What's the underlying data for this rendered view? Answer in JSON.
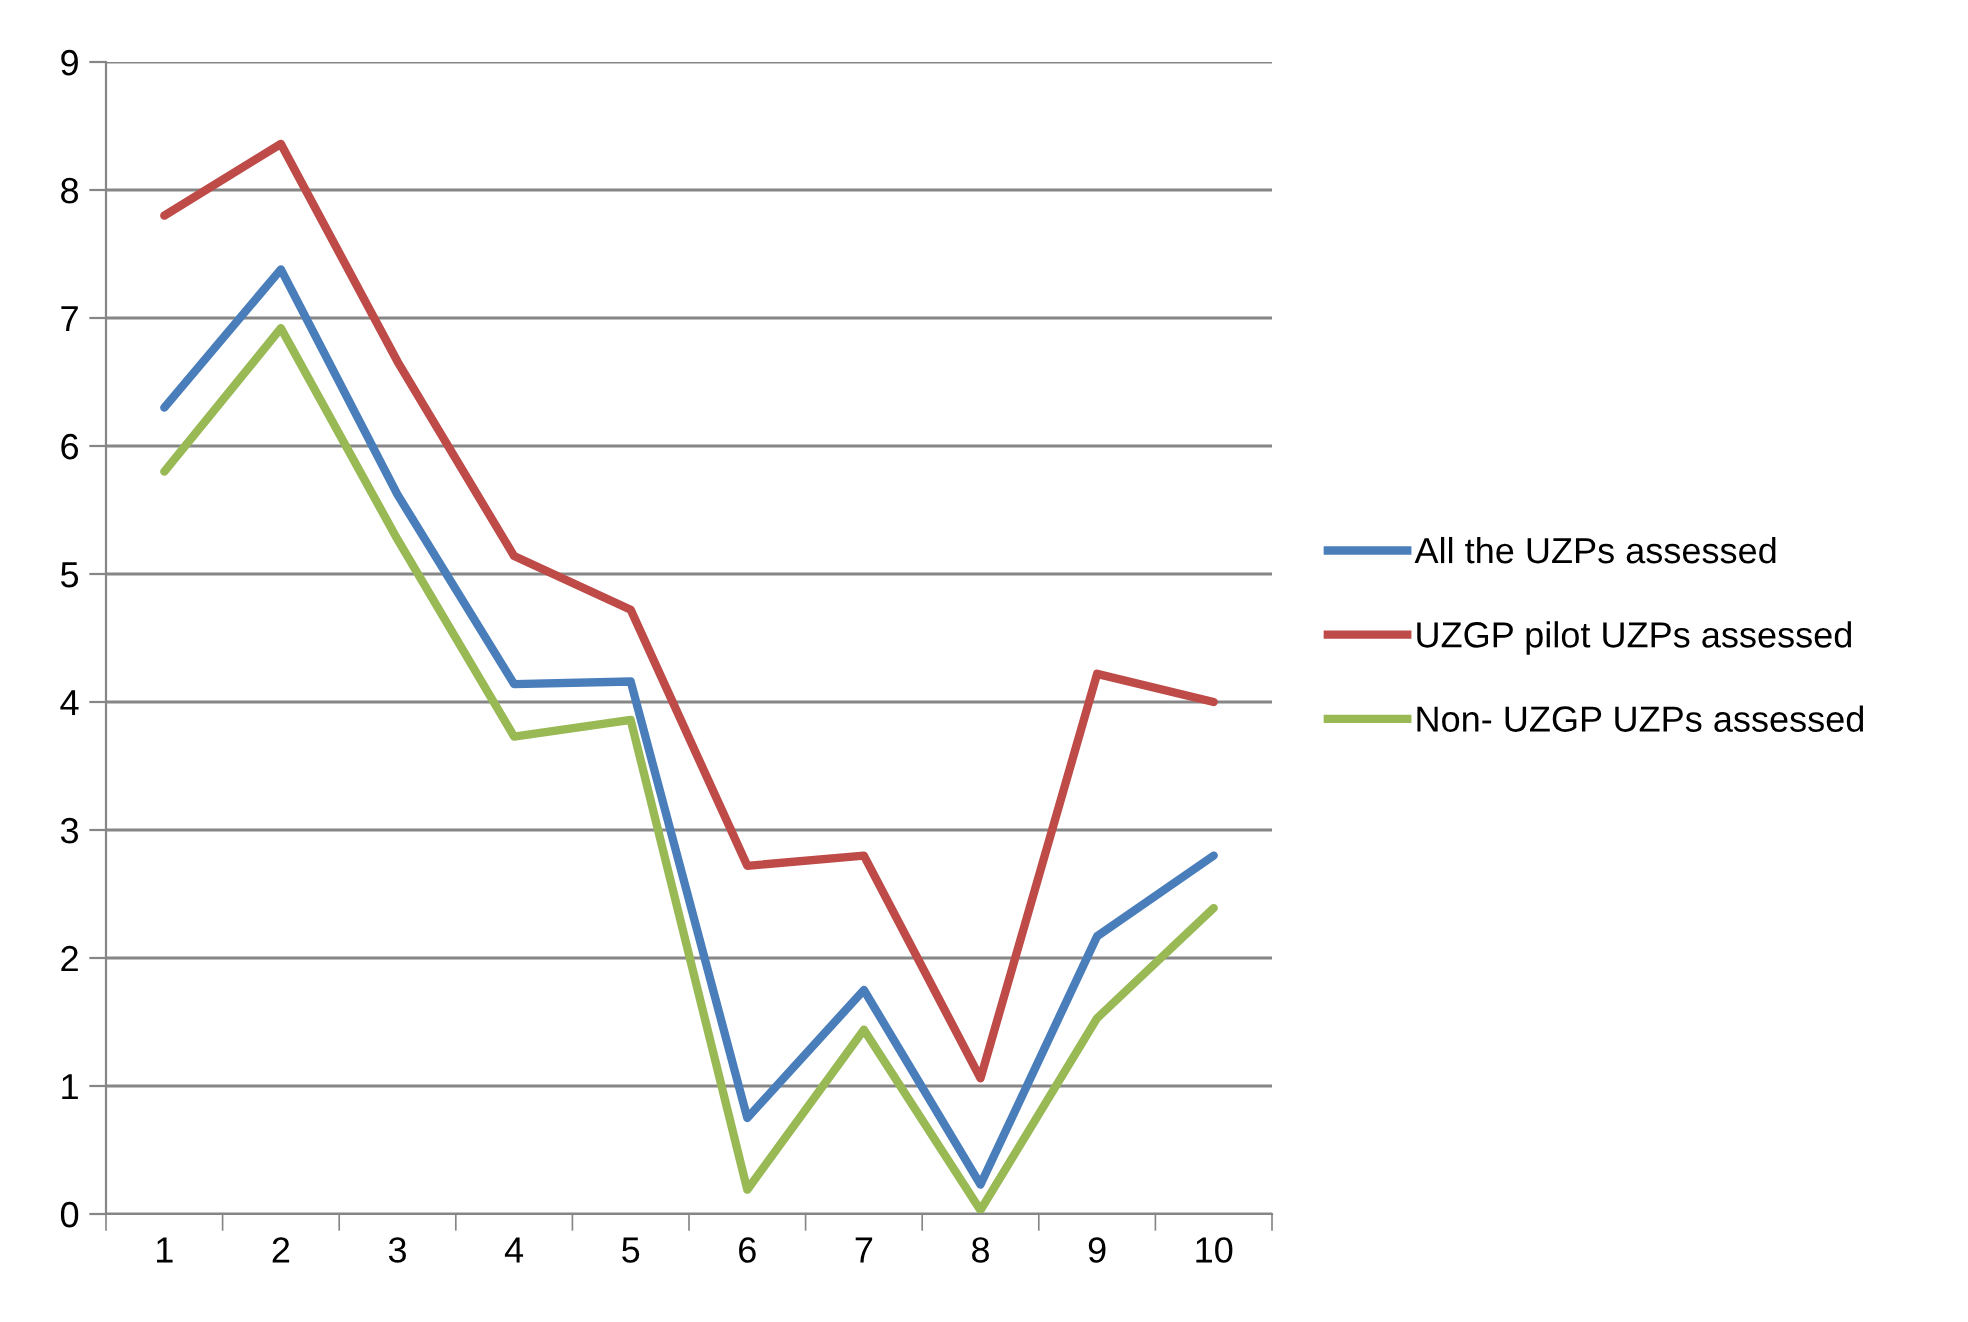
{
  "chart_data": {
    "type": "line",
    "categories": [
      "1",
      "2",
      "3",
      "4",
      "5",
      "6",
      "7",
      "8",
      "9",
      "10"
    ],
    "series": [
      {
        "name": "All the UZPs assessed",
        "color": "#4a7ebb",
        "values": [
          6.3,
          7.38,
          5.62,
          4.14,
          4.16,
          0.75,
          1.75,
          0.23,
          2.17,
          2.8
        ]
      },
      {
        "name": "UZGP pilot UZPs assessed",
        "color": "#be4b48",
        "values": [
          7.8,
          8.36,
          6.66,
          5.14,
          4.72,
          2.72,
          2.8,
          1.06,
          4.22,
          4.0
        ]
      },
      {
        "name": "Non- UZGP UZPs assessed",
        "color": "#98b954",
        "values": [
          5.8,
          6.92,
          5.27,
          3.73,
          3.86,
          0.19,
          1.44,
          0.03,
          1.53,
          2.39
        ]
      }
    ],
    "ylim": [
      0,
      9
    ],
    "yticks": [
      0,
      1,
      2,
      3,
      4,
      5,
      6,
      7,
      8,
      9
    ],
    "grid": "y",
    "legend": "right",
    "marker": "none",
    "line_style": "solid"
  }
}
